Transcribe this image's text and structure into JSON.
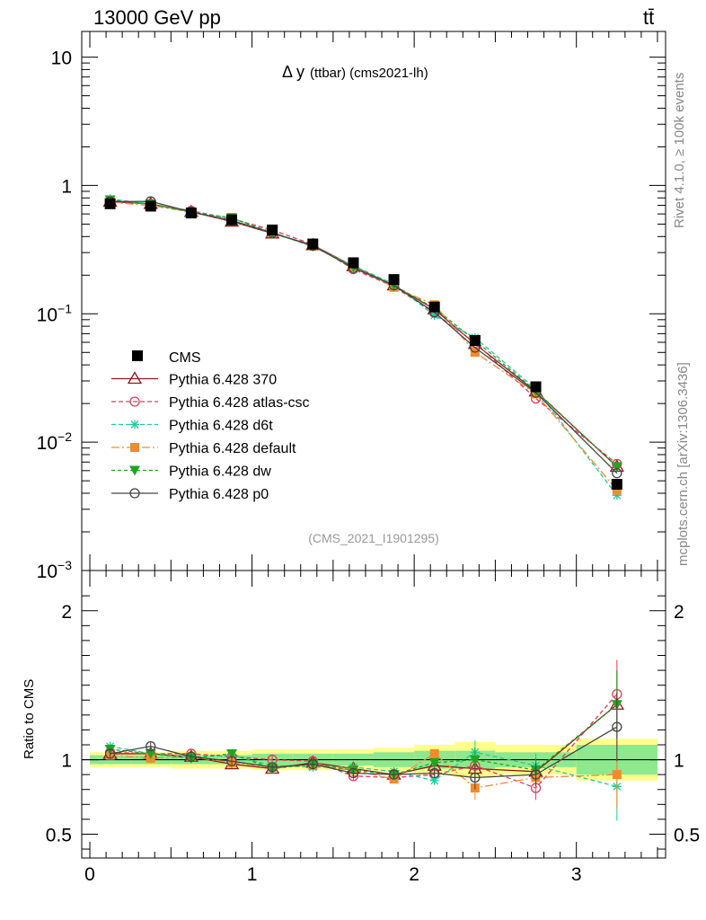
{
  "header": {
    "energy_label": "13000 GeV pp",
    "process_label": "tt̄",
    "side_label": "Rivet 4.1.0, ≥ 100k events",
    "side_label2": "mcplots.cern.ch [arXiv:1306.3436]"
  },
  "chart_data": {
    "type": "line",
    "title": "Δ y(ttbar) (cms2021-lh)",
    "title_main": "Δ y",
    "title_sub": "(ttbar) (cms2021-lh)",
    "watermark": "(CMS_2021_I1901295)",
    "xlabel": "",
    "ylabel_ratio": "Ratio to CMS",
    "xlim": [
      -0.05,
      3.55
    ],
    "ylim": [
      0.001,
      15.85
    ],
    "ratio_ylim": [
      0.34,
      2.27
    ],
    "y_scale": "log",
    "x_ticks": [
      0,
      1,
      2,
      3
    ],
    "x_tick_labels": [
      "0",
      "1",
      "2",
      "3"
    ],
    "y_ticks": [
      10,
      1,
      0.1,
      0.01,
      0.001
    ],
    "y_tick_labels": [
      {
        "base": "10",
        "exp": ""
      },
      {
        "base": "1",
        "exp": ""
      },
      {
        "base": "10",
        "exp": "−1"
      },
      {
        "base": "10",
        "exp": "−2"
      },
      {
        "base": "10",
        "exp": "−3"
      }
    ],
    "ratio_ticks": [
      2,
      1,
      0.5
    ],
    "ratio_tick_labels": [
      "2",
      "1",
      "0.5"
    ],
    "bins": [
      [
        0,
        0.25
      ],
      [
        0.25,
        0.5
      ],
      [
        0.5,
        0.75
      ],
      [
        0.75,
        1.0
      ],
      [
        1.0,
        1.25
      ],
      [
        1.25,
        1.5
      ],
      [
        1.5,
        1.75
      ],
      [
        1.75,
        2.0
      ],
      [
        2.0,
        2.25
      ],
      [
        2.25,
        2.5
      ],
      [
        2.5,
        3.0
      ],
      [
        3.0,
        3.5
      ]
    ],
    "x": [
      0.125,
      0.375,
      0.625,
      0.875,
      1.125,
      1.375,
      1.625,
      1.875,
      2.125,
      2.375,
      2.75,
      3.25
    ],
    "data": {
      "name": "CMS",
      "values": [
        0.72,
        0.69,
        0.61,
        0.54,
        0.45,
        0.35,
        0.25,
        0.185,
        0.113,
        0.062,
        0.027,
        0.0047
      ],
      "band_inner": [
        0.03,
        0.03,
        0.03,
        0.03,
        0.04,
        0.04,
        0.04,
        0.05,
        0.06,
        0.06,
        0.05,
        0.1
      ],
      "band_outer": [
        0.05,
        0.05,
        0.06,
        0.06,
        0.07,
        0.07,
        0.07,
        0.08,
        0.1,
        0.12,
        0.1,
        0.14
      ]
    },
    "series": [
      {
        "name": "Pythia 6.428 370",
        "color": "#8b1a1a",
        "dash": "",
        "marker": "triangle-open",
        "ratios": [
          1.04,
          1.04,
          1.02,
          0.97,
          0.94,
          0.98,
          0.94,
          0.9,
          0.96,
          0.94,
          0.92,
          1.37
        ]
      },
      {
        "name": "Pythia 6.428 atlas-csc",
        "color": "#e8385c",
        "dash": "5,3",
        "marker": "circle-open",
        "ratios": [
          1.05,
          1.04,
          1.04,
          1.02,
          1.0,
          0.99,
          0.89,
          0.88,
          0.9,
          0.96,
          0.81,
          1.44
        ]
      },
      {
        "name": "Pythia 6.428 d6t",
        "color": "#1fcc9e",
        "dash": "5,3",
        "marker": "star",
        "ratios": [
          1.09,
          1.04,
          1.02,
          1.03,
          0.96,
          0.95,
          0.95,
          0.92,
          0.86,
          1.05,
          0.96,
          0.82
        ]
      },
      {
        "name": "Pythia 6.428 default",
        "color": "#f58a2c",
        "dash": "9,3,2,3",
        "marker": "square",
        "ratios": [
          1.03,
          1.01,
          1.02,
          0.98,
          0.95,
          0.96,
          0.93,
          0.87,
          1.04,
          0.81,
          0.88,
          0.9
        ]
      },
      {
        "name": "Pythia 6.428 dw",
        "color": "#1fa61f",
        "dash": "4,3",
        "marker": "triangle-down",
        "ratios": [
          1.07,
          1.04,
          1.01,
          1.04,
          0.94,
          0.97,
          0.93,
          0.9,
          0.98,
          1.0,
          0.93,
          1.37
        ]
      },
      {
        "name": "Pythia 6.428 p0",
        "color": "#444444",
        "dash": "",
        "marker": "circle-open",
        "ratios": [
          1.04,
          1.09,
          1.02,
          0.99,
          0.95,
          0.97,
          0.91,
          0.9,
          0.91,
          0.88,
          0.9,
          1.22
        ]
      }
    ]
  }
}
